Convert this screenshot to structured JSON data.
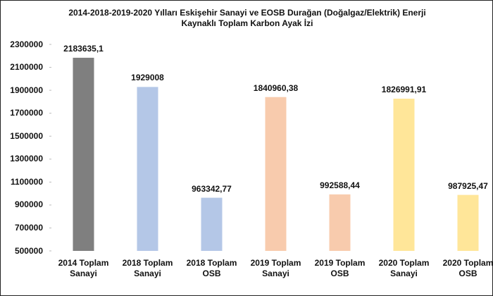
{
  "chart_data": {
    "type": "bar",
    "title": "2014-2018-2019-2020 Yılları Eskişehir Sanayi ve EOSB Durağan (Doğalgaz/Elektrik) Enerji Kaynaklı Toplam Karbon Ayak İzi",
    "categories": [
      "2014 Toplam Sanayi",
      "2018 Toplam Sanayi",
      "2018 Toplam OSB",
      "2019 Toplam Sanayi",
      "2019 Toplam OSB",
      "2020 Toplam Sanayi",
      "2020 Toplam OSB"
    ],
    "values": [
      2183635.1,
      1929008,
      963342.77,
      1840960.38,
      992588.44,
      1826991.91,
      987925.47
    ],
    "value_labels": [
      "2183635,1",
      "1929008",
      "963342,77",
      "1840960,38",
      "992588,44",
      "1826991,91",
      "987925,47"
    ],
    "colors": [
      "#7f7f7f",
      "#b4c7e7",
      "#b4c7e7",
      "#f8cbad",
      "#f8cbad",
      "#ffe699",
      "#ffe699"
    ],
    "ylim": [
      500000,
      2300000
    ],
    "yticks": [
      500000,
      700000,
      900000,
      1100000,
      1300000,
      1500000,
      1700000,
      1900000,
      2100000,
      2300000
    ],
    "grid": false
  }
}
